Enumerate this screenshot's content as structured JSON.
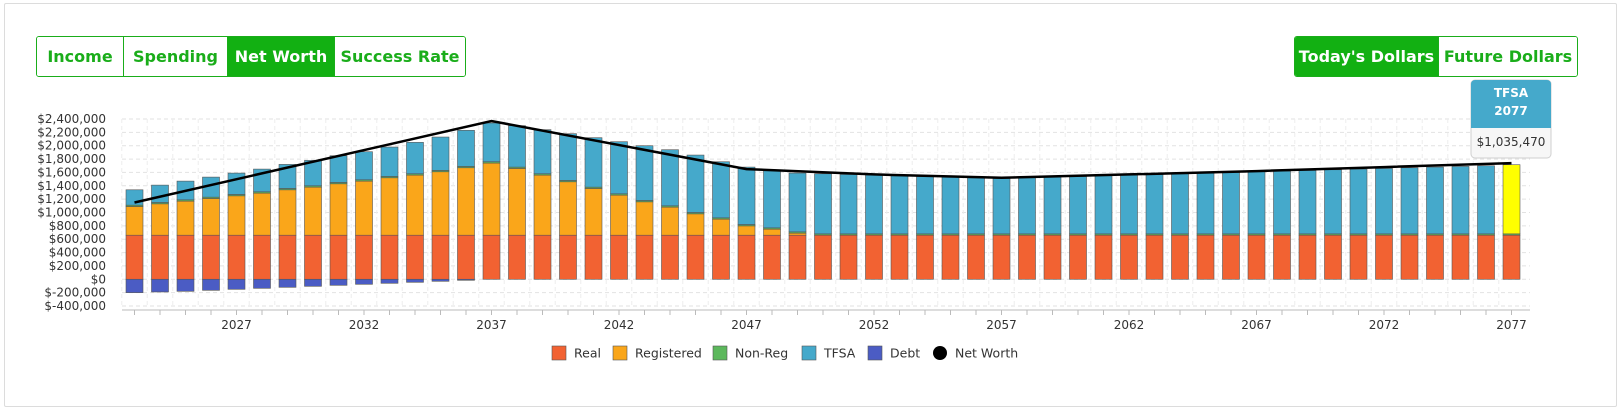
{
  "tabs": [
    {
      "label": "Income",
      "active": false
    },
    {
      "label": "Spending",
      "active": false
    },
    {
      "label": "Net Worth",
      "active": true
    },
    {
      "label": "Success Rate",
      "active": false
    }
  ],
  "dollar_mode": [
    {
      "label": "Today's Dollars",
      "active": true
    },
    {
      "label": "Future Dollars",
      "active": false
    }
  ],
  "tooltip": {
    "title": "TFSA",
    "year": "2077",
    "value": "$1,035,470"
  },
  "colors": {
    "real": "#f26232",
    "registered": "#faa61a",
    "nonreg": "#5cb85c",
    "tfsa": "#45a9cb",
    "debt": "#4b5cc4",
    "networth": "#000000",
    "highlight": "#ffff00",
    "accent": "#12b012",
    "tooltip_header": "#45a9cb"
  },
  "chart_data": {
    "type": "bar",
    "stacked": true,
    "x": [
      2023,
      2024,
      2025,
      2026,
      2027,
      2028,
      2029,
      2030,
      2031,
      2032,
      2033,
      2034,
      2035,
      2036,
      2037,
      2038,
      2039,
      2040,
      2041,
      2042,
      2043,
      2044,
      2045,
      2046,
      2047,
      2048,
      2049,
      2050,
      2051,
      2052,
      2053,
      2054,
      2055,
      2056,
      2057,
      2058,
      2059,
      2060,
      2061,
      2062,
      2063,
      2064,
      2065,
      2066,
      2067,
      2068,
      2069,
      2070,
      2071,
      2072,
      2073,
      2074,
      2075,
      2076,
      2077
    ],
    "x_tick_labels": [
      "2027",
      "2032",
      "2037",
      "2042",
      "2047",
      "2052",
      "2057",
      "2062",
      "2067",
      "2072",
      "2077"
    ],
    "y_tick_labels": [
      "$-400,000",
      "$-200,000",
      "$0",
      "$200,000",
      "$400,000",
      "$600,000",
      "$800,000",
      "$1,000,000",
      "$1,200,000",
      "$1,400,000",
      "$1,600,000",
      "$1,800,000",
      "$2,000,000",
      "$2,200,000",
      "$2,400,000"
    ],
    "ylim": [
      -400000,
      2400000
    ],
    "grid": true,
    "legend_position": "bottom",
    "series": [
      {
        "name": "Real",
        "color": "#f26232",
        "values": [
          660000,
          660000,
          660000,
          660000,
          660000,
          660000,
          660000,
          660000,
          660000,
          660000,
          660000,
          660000,
          660000,
          660000,
          660000,
          660000,
          660000,
          660000,
          660000,
          660000,
          660000,
          660000,
          660000,
          660000,
          660000,
          660000,
          660000,
          660000,
          660000,
          660000,
          660000,
          660000,
          660000,
          660000,
          660000,
          660000,
          660000,
          660000,
          660000,
          660000,
          660000,
          660000,
          660000,
          660000,
          660000,
          660000,
          660000,
          660000,
          660000,
          660000,
          660000,
          660000,
          660000,
          660000,
          660000
        ]
      },
      {
        "name": "Registered",
        "color": "#faa61a",
        "values": [
          430000,
          470000,
          510000,
          550000,
          590000,
          630000,
          680000,
          720000,
          770000,
          810000,
          860000,
          900000,
          950000,
          1010000,
          1080000,
          1000000,
          900000,
          800000,
          700000,
          600000,
          500000,
          420000,
          320000,
          240000,
          140000,
          90000,
          30000,
          0,
          0,
          0,
          0,
          0,
          0,
          0,
          0,
          0,
          0,
          0,
          0,
          0,
          0,
          0,
          0,
          0,
          0,
          0,
          0,
          0,
          0,
          0,
          0,
          0,
          0,
          0,
          0
        ]
      },
      {
        "name": "Non-Reg",
        "color": "#5cb85c",
        "values": [
          20000,
          20000,
          20000,
          20000,
          20000,
          20000,
          20000,
          20000,
          20000,
          20000,
          20000,
          20000,
          20000,
          20000,
          20000,
          20000,
          20000,
          20000,
          20000,
          20000,
          20000,
          20000,
          20000,
          20000,
          20000,
          20000,
          20000,
          20000,
          20000,
          20000,
          20000,
          20000,
          20000,
          20000,
          20000,
          20000,
          20000,
          20000,
          20000,
          20000,
          20000,
          20000,
          20000,
          20000,
          20000,
          20000,
          20000,
          20000,
          20000,
          20000,
          20000,
          20000,
          20000,
          20000,
          20000
        ]
      },
      {
        "name": "TFSA",
        "color": "#45a9cb",
        "values": [
          230000,
          260000,
          280000,
          300000,
          320000,
          340000,
          360000,
          380000,
          400000,
          420000,
          440000,
          470000,
          500000,
          540000,
          580000,
          620000,
          660000,
          700000,
          740000,
          780000,
          820000,
          840000,
          860000,
          840000,
          860000,
          860000,
          880000,
          900000,
          890000,
          880000,
          870000,
          860000,
          850000,
          840000,
          830000,
          840000,
          850000,
          860000,
          870000,
          880000,
          890000,
          900000,
          910000,
          920000,
          930000,
          940000,
          950000,
          960000,
          970000,
          980000,
          990000,
          1000000,
          1010000,
          1020000,
          1035470
        ]
      },
      {
        "name": "Debt",
        "color": "#4b5cc4",
        "values": [
          -200000,
          -190000,
          -180000,
          -165000,
          -150000,
          -135000,
          -120000,
          -105000,
          -90000,
          -75000,
          -60000,
          -45000,
          -30000,
          -15000,
          0,
          0,
          0,
          0,
          0,
          0,
          0,
          0,
          0,
          0,
          0,
          0,
          0,
          0,
          0,
          0,
          0,
          0,
          0,
          0,
          0,
          0,
          0,
          0,
          0,
          0,
          0,
          0,
          0,
          0,
          0,
          0,
          0,
          0,
          0,
          0,
          0,
          0,
          0,
          0,
          0
        ]
      }
    ],
    "net_worth": {
      "name": "Net Worth",
      "color": "#000000",
      "x": [
        2023,
        2037,
        2047,
        2052,
        2057,
        2062,
        2067,
        2072,
        2077
      ],
      "values": [
        1150000,
        2370000,
        1650000,
        1570000,
        1520000,
        1570000,
        1620000,
        1680000,
        1740000
      ]
    },
    "highlight_year": 2077
  }
}
